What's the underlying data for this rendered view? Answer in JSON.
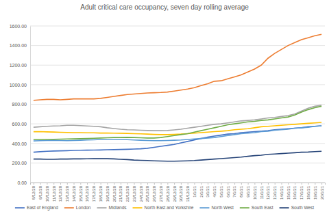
{
  "chart_data": {
    "type": "line",
    "title": "Adult critical care occupancy, seven day rolling average",
    "x": [
      "8/12/20",
      "9/12/20",
      "10/12/20",
      "11/12/20",
      "12/12/20",
      "13/12/20",
      "14/12/20",
      "15/12/20",
      "16/12/20",
      "17/12/20",
      "18/12/20",
      "19/12/20",
      "20/12/20",
      "21/12/20",
      "22/12/20",
      "23/12/20",
      "24/12/20",
      "25/12/20",
      "26/12/20",
      "27/12/20",
      "28/12/20",
      "29/12/20",
      "30/12/20",
      "31/12/20",
      "1/1/21",
      "2/1/21",
      "3/1/21",
      "4/1/21",
      "5/1/21",
      "6/1/21",
      "7/1/21",
      "8/1/21",
      "9/1/21",
      "10/1/21",
      "11/1/21",
      "12/1/21",
      "13/1/21",
      "14/1/21",
      "15/1/21",
      "16/1/21",
      "17/1/21",
      "18/1/21",
      "19/1/21",
      "20/1/21"
    ],
    "series": [
      {
        "name": "East of England",
        "color": "#4472c4",
        "values": [
          310,
          315,
          320,
          322,
          324,
          326,
          328,
          330,
          331,
          332,
          333,
          335,
          336,
          338,
          340,
          342,
          345,
          350,
          360,
          370,
          380,
          390,
          405,
          420,
          435,
          450,
          465,
          475,
          485,
          495,
          500,
          510,
          515,
          520,
          525,
          530,
          540,
          545,
          550,
          555,
          560,
          570,
          575,
          580
        ]
      },
      {
        "name": "London",
        "color": "#ed7d31",
        "values": [
          840,
          845,
          850,
          850,
          845,
          850,
          855,
          855,
          855,
          855,
          860,
          870,
          880,
          890,
          900,
          905,
          910,
          915,
          918,
          920,
          925,
          935,
          945,
          955,
          970,
          990,
          1010,
          1035,
          1040,
          1060,
          1080,
          1100,
          1130,
          1160,
          1200,
          1270,
          1320,
          1360,
          1400,
          1430,
          1460,
          1480,
          1500,
          1515
        ]
      },
      {
        "name": "Midlands",
        "color": "#a5a5a5",
        "values": [
          565,
          570,
          575,
          578,
          580,
          585,
          585,
          582,
          578,
          575,
          570,
          560,
          552,
          545,
          540,
          538,
          535,
          532,
          530,
          530,
          532,
          538,
          545,
          555,
          565,
          575,
          585,
          595,
          600,
          610,
          620,
          630,
          635,
          640,
          650,
          660,
          665,
          675,
          685,
          700,
          730,
          760,
          780,
          790
        ]
      },
      {
        "name": "North East and Yorkshire",
        "color": "#ffc000",
        "values": [
          520,
          520,
          518,
          516,
          514,
          512,
          510,
          510,
          508,
          508,
          506,
          506,
          505,
          504,
          502,
          500,
          498,
          495,
          492,
          490,
          490,
          492,
          495,
          500,
          505,
          510,
          515,
          520,
          525,
          530,
          540,
          545,
          550,
          560,
          570,
          575,
          580,
          585,
          590,
          595,
          600,
          605,
          610,
          615
        ]
      },
      {
        "name": "North West",
        "color": "#5b9bd5",
        "values": [
          425,
          428,
          430,
          432,
          430,
          428,
          430,
          432,
          435,
          437,
          440,
          442,
          442,
          440,
          438,
          435,
          432,
          430,
          428,
          428,
          430,
          432,
          435,
          440,
          445,
          450,
          455,
          460,
          470,
          480,
          490,
          500,
          505,
          510,
          520,
          525,
          535,
          540,
          545,
          555,
          560,
          565,
          575,
          580
        ]
      },
      {
        "name": "South East",
        "color": "#70ad47",
        "values": [
          440,
          440,
          442,
          442,
          444,
          445,
          446,
          448,
          450,
          452,
          455,
          458,
          460,
          460,
          462,
          460,
          458,
          455,
          455,
          460,
          470,
          480,
          490,
          500,
          515,
          530,
          545,
          560,
          575,
          590,
          600,
          610,
          620,
          625,
          635,
          640,
          650,
          660,
          670,
          690,
          720,
          745,
          765,
          780
        ]
      },
      {
        "name": "South West",
        "color": "#264478",
        "values": [
          240,
          240,
          238,
          238,
          240,
          240,
          242,
          242,
          243,
          244,
          245,
          244,
          242,
          238,
          235,
          230,
          227,
          225,
          222,
          220,
          218,
          218,
          220,
          222,
          225,
          230,
          235,
          240,
          245,
          250,
          255,
          260,
          268,
          275,
          280,
          288,
          292,
          296,
          300,
          305,
          310,
          312,
          316,
          320
        ]
      }
    ],
    "ylim": [
      0,
      1600
    ],
    "yticks": [
      {
        "value": 0,
        "label": "0.00"
      },
      {
        "value": 200,
        "label": "200.00"
      },
      {
        "value": 400,
        "label": "400.00"
      },
      {
        "value": 600,
        "label": "600.00"
      },
      {
        "value": 800,
        "label": "800.00"
      },
      {
        "value": 1000,
        "label": "1000.00"
      },
      {
        "value": 1200,
        "label": "1200.00"
      },
      {
        "value": 1400,
        "label": "1400.00"
      },
      {
        "value": 1600,
        "label": "1600.00"
      }
    ],
    "grid": true,
    "legend": "bottom"
  }
}
